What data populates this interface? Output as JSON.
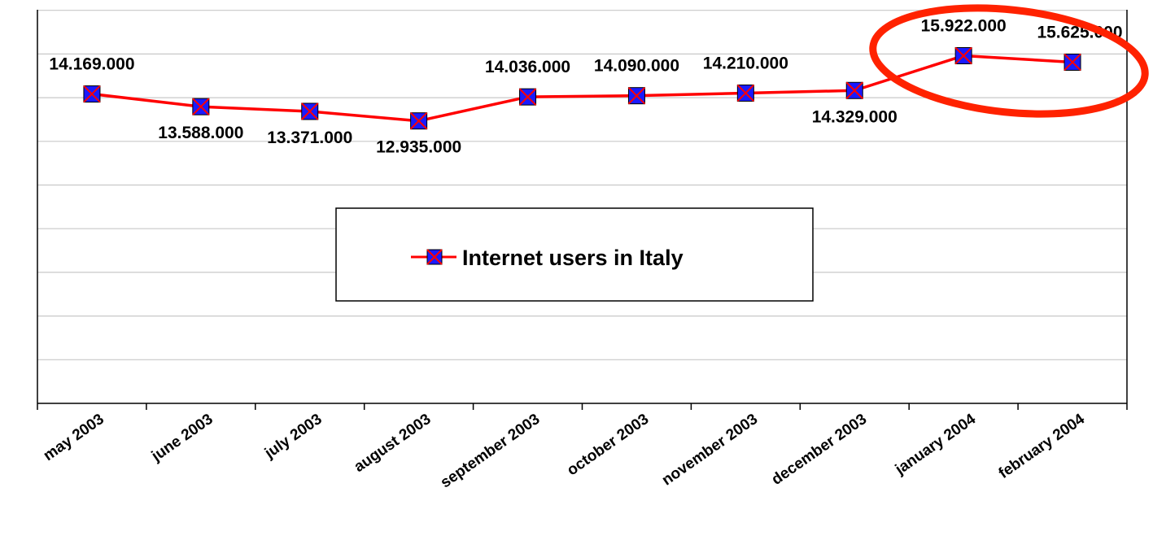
{
  "chart_data": {
    "type": "line",
    "categories": [
      "may 2003",
      "june 2003",
      "july 2003",
      "august 2003",
      "september 2003",
      "october 2003",
      "november 2003",
      "december 2003",
      "january 2004",
      "february 2004"
    ],
    "series": [
      {
        "name": "Internet users in Italy",
        "values": [
          14169000,
          13588000,
          13371000,
          12935000,
          14036000,
          14090000,
          14210000,
          14329000,
          15922000,
          15625000
        ],
        "labels": [
          "14.169.000",
          "13.588.000",
          "13.371.000",
          "12.935.000",
          "14.036.000",
          "14.090.000",
          "14.210.000",
          "14.329.000",
          "15.922.000",
          "15.625.000"
        ],
        "line_color": "#ff0000",
        "marker_color": "#1a1aff"
      }
    ],
    "title": "",
    "xlabel": "",
    "ylabel": "",
    "ylim": [
      0,
      18000000
    ],
    "grid": true,
    "legend": "center",
    "y_tick_labels_shown": false,
    "highlight": {
      "shape": "ellipse",
      "color": "#ff2200",
      "marks": [
        "january 2004",
        "february 2004"
      ]
    }
  }
}
